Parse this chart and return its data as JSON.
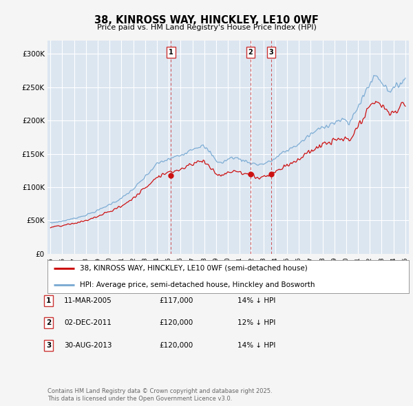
{
  "title": "38, KINROSS WAY, HINCKLEY, LE10 0WF",
  "subtitle": "Price paid vs. HM Land Registry's House Price Index (HPI)",
  "legend_line1": "38, KINROSS WAY, HINCKLEY, LE10 0WF (semi-detached house)",
  "legend_line2": "HPI: Average price, semi-detached house, Hinckley and Bosworth",
  "footer1": "Contains HM Land Registry data © Crown copyright and database right 2025.",
  "footer2": "This data is licensed under the Open Government Licence v3.0.",
  "transactions": [
    {
      "num": 1,
      "date": "11-MAR-2005",
      "price": "£117,000",
      "hpi": "14% ↓ HPI"
    },
    {
      "num": 2,
      "date": "02-DEC-2011",
      "price": "£120,000",
      "hpi": "12% ↓ HPI"
    },
    {
      "num": 3,
      "date": "30-AUG-2013",
      "price": "£120,000",
      "hpi": "14% ↓ HPI"
    }
  ],
  "hpi_color": "#7eadd4",
  "price_color": "#cc1111",
  "vline_color": "#cc3333",
  "bg_color": "#dce6f1",
  "grid_color": "#ffffff",
  "outer_bg": "#f5f5f5",
  "ylim": [
    0,
    320000
  ],
  "yticks": [
    0,
    50000,
    100000,
    150000,
    200000,
    250000,
    300000
  ],
  "ytick_labels": [
    "£0",
    "£50K",
    "£100K",
    "£150K",
    "£200K",
    "£250K",
    "£300K"
  ],
  "price_years": [
    2005.19,
    2011.92,
    2013.66
  ],
  "price_values": [
    117000,
    120000,
    120000
  ],
  "transaction_years": [
    2005.19,
    2011.92,
    2013.66
  ],
  "transaction_labels": [
    "1",
    "2",
    "3"
  ],
  "xlim": [
    1994.75,
    2025.3
  ],
  "xticks": [
    1995,
    1996,
    1997,
    1998,
    1999,
    2000,
    2001,
    2002,
    2003,
    2004,
    2005,
    2006,
    2007,
    2008,
    2009,
    2010,
    2011,
    2012,
    2013,
    2014,
    2015,
    2016,
    2017,
    2018,
    2019,
    2020,
    2021,
    2022,
    2023,
    2024,
    2025
  ]
}
